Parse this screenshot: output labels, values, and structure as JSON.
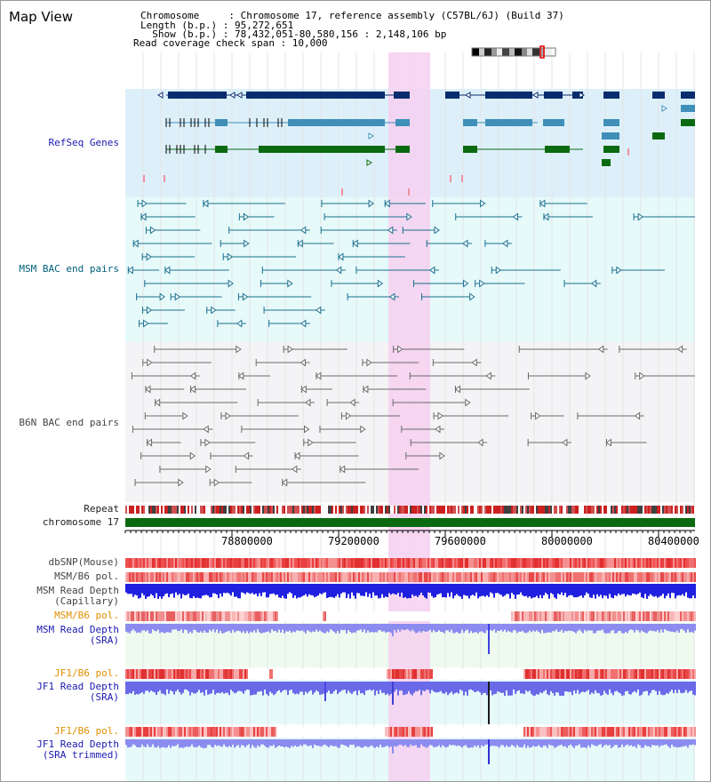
{
  "title": "Map View",
  "header": {
    "line1": "Chromosome     : Chromosome 17, reference assembly (C57BL/6J) (Build 37)",
    "line2": "Length (b.p.) : 95,272,651",
    "line3": "  Show (b.p.) : 78,432,051-80,580,156 : 2,148,106 bp",
    "line4": "Read coverage check span : 10,000"
  },
  "tracks": {
    "refseq": "RefSeq Genes",
    "msm_bac": "MSM BAC end pairs",
    "b6n_bac": "B6N BAC end pairs",
    "repeat": "Repeat",
    "chromosome": "chromosome 17",
    "dbsnp": "dbSNP(Mouse)",
    "msm_pol1": "MSM/B6 pol.",
    "msm_depth_cap": "MSM Read Depth\n(Capillary)",
    "msm_pol2": "MSM/B6 pol.",
    "msm_depth_sra": "MSM Read Depth\n(SRA)",
    "jf1_pol1": "JF1/B6 pol.",
    "jf1_depth_sra": "JF1 Read Depth\n(SRA)",
    "jf1_pol2": "JF1/B6 pol.",
    "jf1_depth_trim": "JF1 Read Depth\n(SRA trimmed)"
  },
  "axis": {
    "ticks": [
      "78800000",
      "79200000",
      "79600000",
      "80000000",
      "80400000"
    ]
  },
  "colors": {
    "refseq_bg": "#ddf0fa",
    "msm_bg": "#e6fafa",
    "b6n_bg": "#f4f4f6",
    "highlight": "#f6d0f0",
    "gene_dark": "#0a2c6e",
    "gene_mid": "#3f8fb8",
    "gene_green": "#0a6a10",
    "msm_line": "#1a6f8f",
    "b6n_line": "#6a6a6a",
    "depth_blue": "#2020e0",
    "depth_light": "#8c8cf0"
  }
}
